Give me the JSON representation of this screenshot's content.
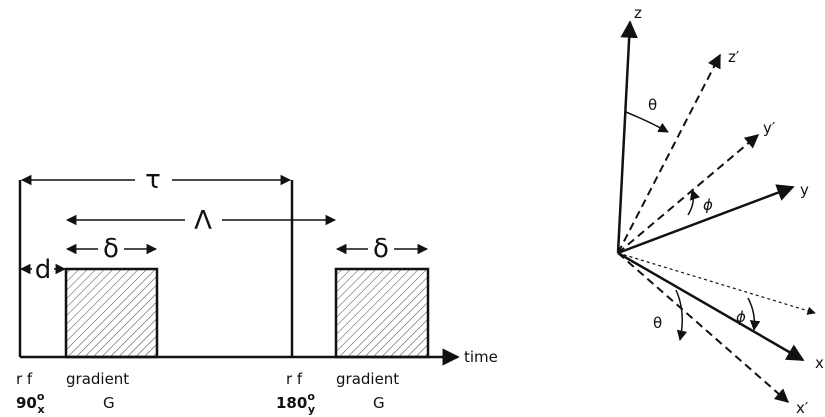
{
  "pulse_diagram": {
    "tau": "τ",
    "lambda": "Λ",
    "delta_1": "δ",
    "delta_2": "δ",
    "d": "d",
    "time": "time",
    "rf_1": "r f",
    "gradient_1": "gradient",
    "pulse_1": {
      "angle": "90",
      "axis": "x",
      "degree": "o"
    },
    "G_1": "G",
    "rf_2": "r f",
    "gradient_2": "gradient",
    "pulse_2": {
      "angle": "180",
      "axis": "y",
      "degree": "o"
    },
    "G_2": "G"
  },
  "axes_diagram": {
    "z": "z",
    "z_prime": "z′",
    "y_prime": "y′",
    "y": "y",
    "x": "x",
    "x_prime": "x′",
    "theta_upper": "θ",
    "phi_upper": "ϕ",
    "theta_lower": "θ",
    "phi_lower": "ϕ"
  }
}
